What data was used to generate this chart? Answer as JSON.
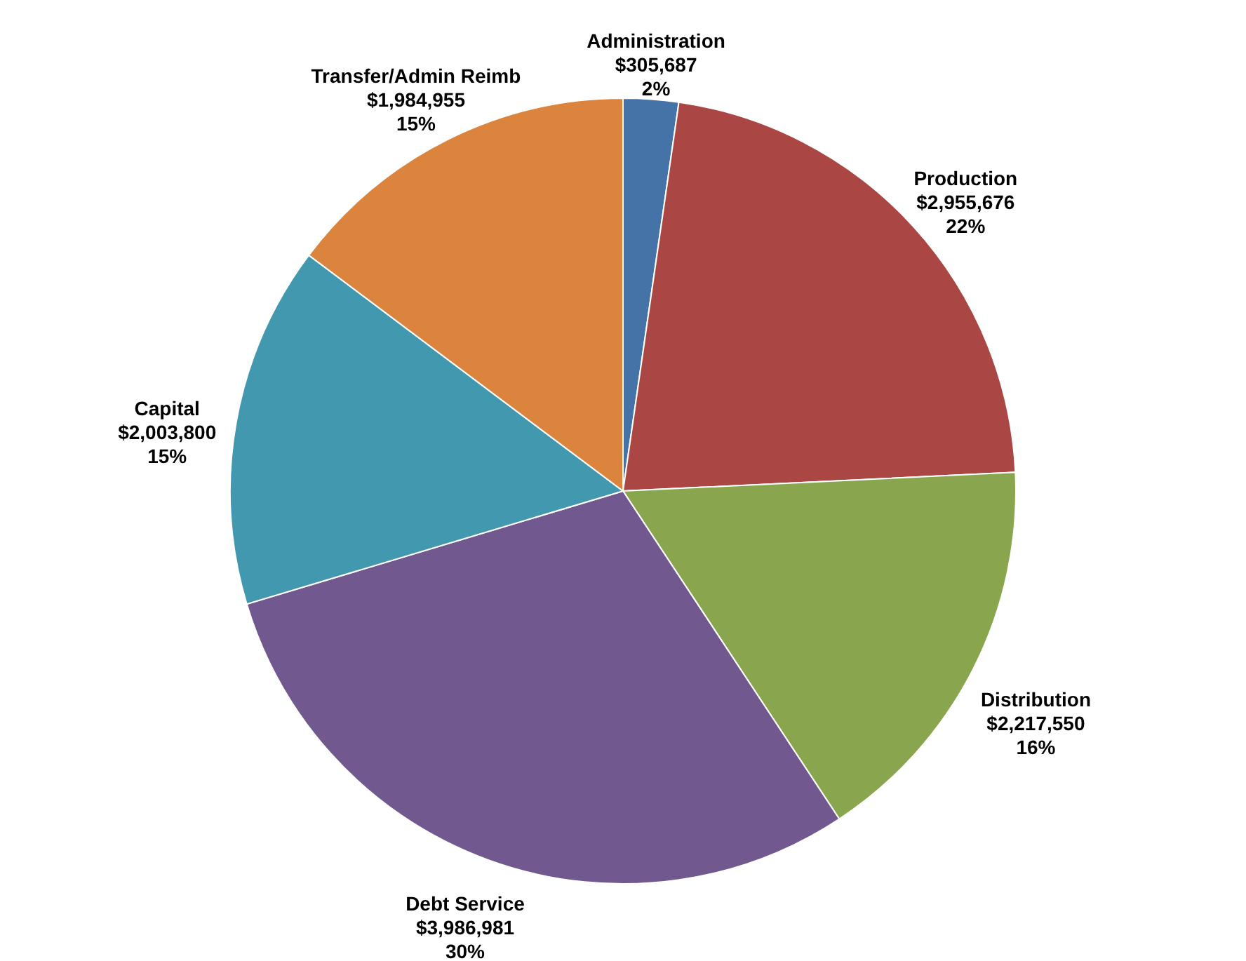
{
  "chart_data": {
    "type": "pie",
    "categories": [
      "Administration",
      "Production",
      "Distribution",
      "Debt Service",
      "Capital",
      "Transfer/Admin Reimb"
    ],
    "values": [
      305687,
      2955676,
      2217550,
      3986981,
      2003800,
      1984955
    ],
    "colors": [
      "#4572a7",
      "#aa4643",
      "#89a54e",
      "#71588f",
      "#4198af",
      "#db843d"
    ],
    "value_labels": [
      "$305,687\n2%",
      "$2,955,676\n22%",
      "$2,217,550\n16%",
      "$3,986,981\n30%",
      "$2,003,800\n15%",
      "$1,984,955\n15%"
    ]
  }
}
